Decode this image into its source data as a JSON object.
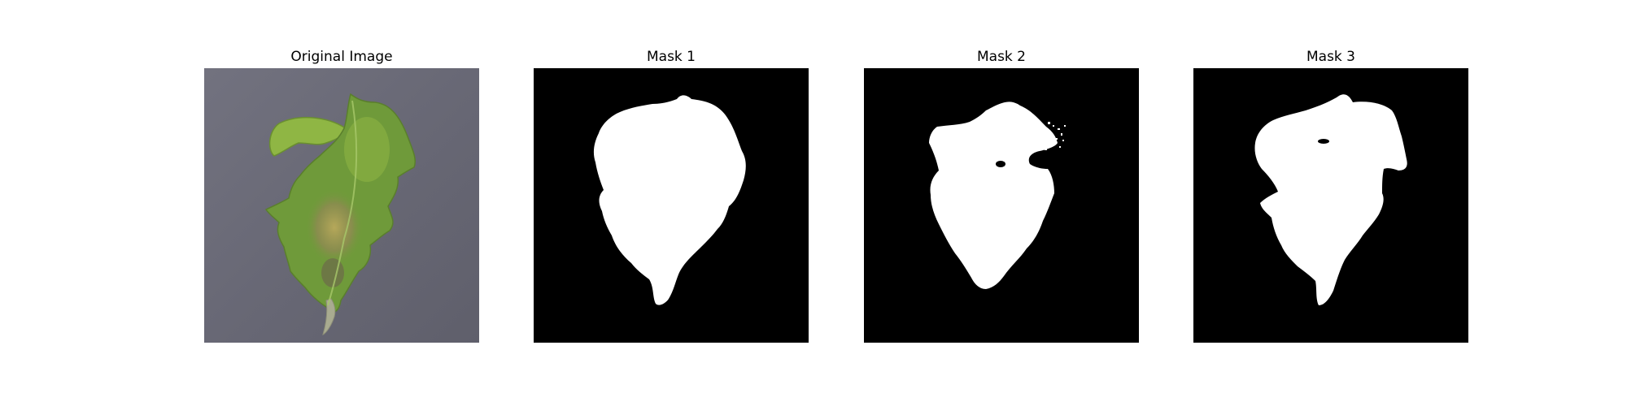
{
  "panels": [
    {
      "title": "Original Image"
    },
    {
      "title": "Mask 1"
    },
    {
      "title": "Mask 2"
    },
    {
      "title": "Mask 3"
    }
  ],
  "colors": {
    "photo_background": "#6b6b78",
    "leaf_green": "#6f9a3a",
    "leaf_light": "#9cbd4a",
    "leaf_blight": "#8c7a4a",
    "mask_background": "#000000",
    "mask_foreground": "#ffffff"
  }
}
